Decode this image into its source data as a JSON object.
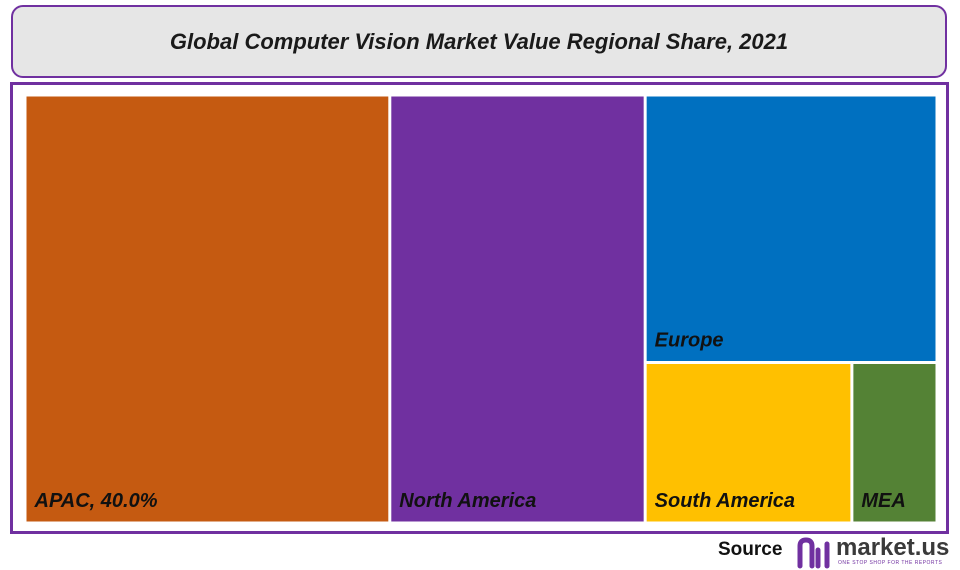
{
  "header": {
    "title": "Global Computer Vision Market Value Regional Share, 2021"
  },
  "footer": {
    "source_label": "Source",
    "brand_name": "market.us",
    "brand_tagline": "ONE STOP SHOP FOR THE REPORTS"
  },
  "colors": {
    "border": "#7030a0",
    "title_bg": "#e6e6e6"
  },
  "chart_data": {
    "type": "treemap",
    "title": "Global Computer Vision Market Value Regional Share, 2021",
    "labels_shown": [
      "APAC, 40.0%",
      "North America",
      "Europe",
      "South America",
      "MEA"
    ],
    "tiles": [
      {
        "name": "APAC",
        "label": "APAC, 40.0%",
        "value": 40.0,
        "color": "#c55a11"
      },
      {
        "name": "North America",
        "label": "North America",
        "value": 28.0,
        "color": "#7030a0"
      },
      {
        "name": "Europe",
        "label": "Europe",
        "value": 20.0,
        "color": "#0070c0"
      },
      {
        "name": "South America",
        "label": "South America",
        "value": 8.5,
        "color": "#ffc000"
      },
      {
        "name": "MEA",
        "label": "MEA",
        "value": 3.5,
        "color": "#548235"
      }
    ]
  }
}
